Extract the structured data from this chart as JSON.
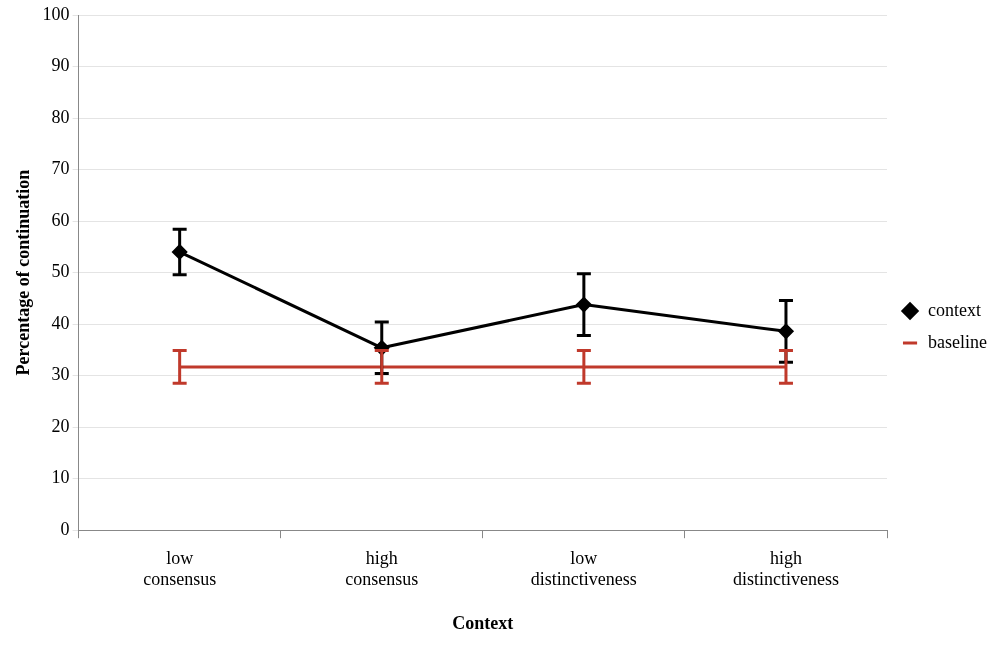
{
  "chart_data": {
    "type": "line",
    "xlabel": "Context",
    "ylabel": "Percentage of continuation",
    "categories": [
      "low consensus",
      "high consensus",
      "low distinctiveness",
      "high distinctiveness"
    ],
    "series": [
      {
        "name": "context",
        "color": "#000000",
        "marker": "diamond",
        "values": [
          54,
          35.4,
          43.8,
          38.6
        ],
        "errors": [
          4.4,
          5,
          6,
          6
        ]
      },
      {
        "name": "baseline",
        "color": "#c0392b",
        "marker": "none",
        "values": [
          31.7,
          31.7,
          31.7,
          31.7
        ],
        "errors": [
          3.2,
          3.2,
          3.2,
          3.2
        ]
      }
    ],
    "ylim": [
      0,
      100
    ],
    "yticks": [
      0,
      10,
      20,
      30,
      40,
      50,
      60,
      70,
      80,
      90,
      100
    ],
    "grid": "y",
    "legend": "right"
  }
}
